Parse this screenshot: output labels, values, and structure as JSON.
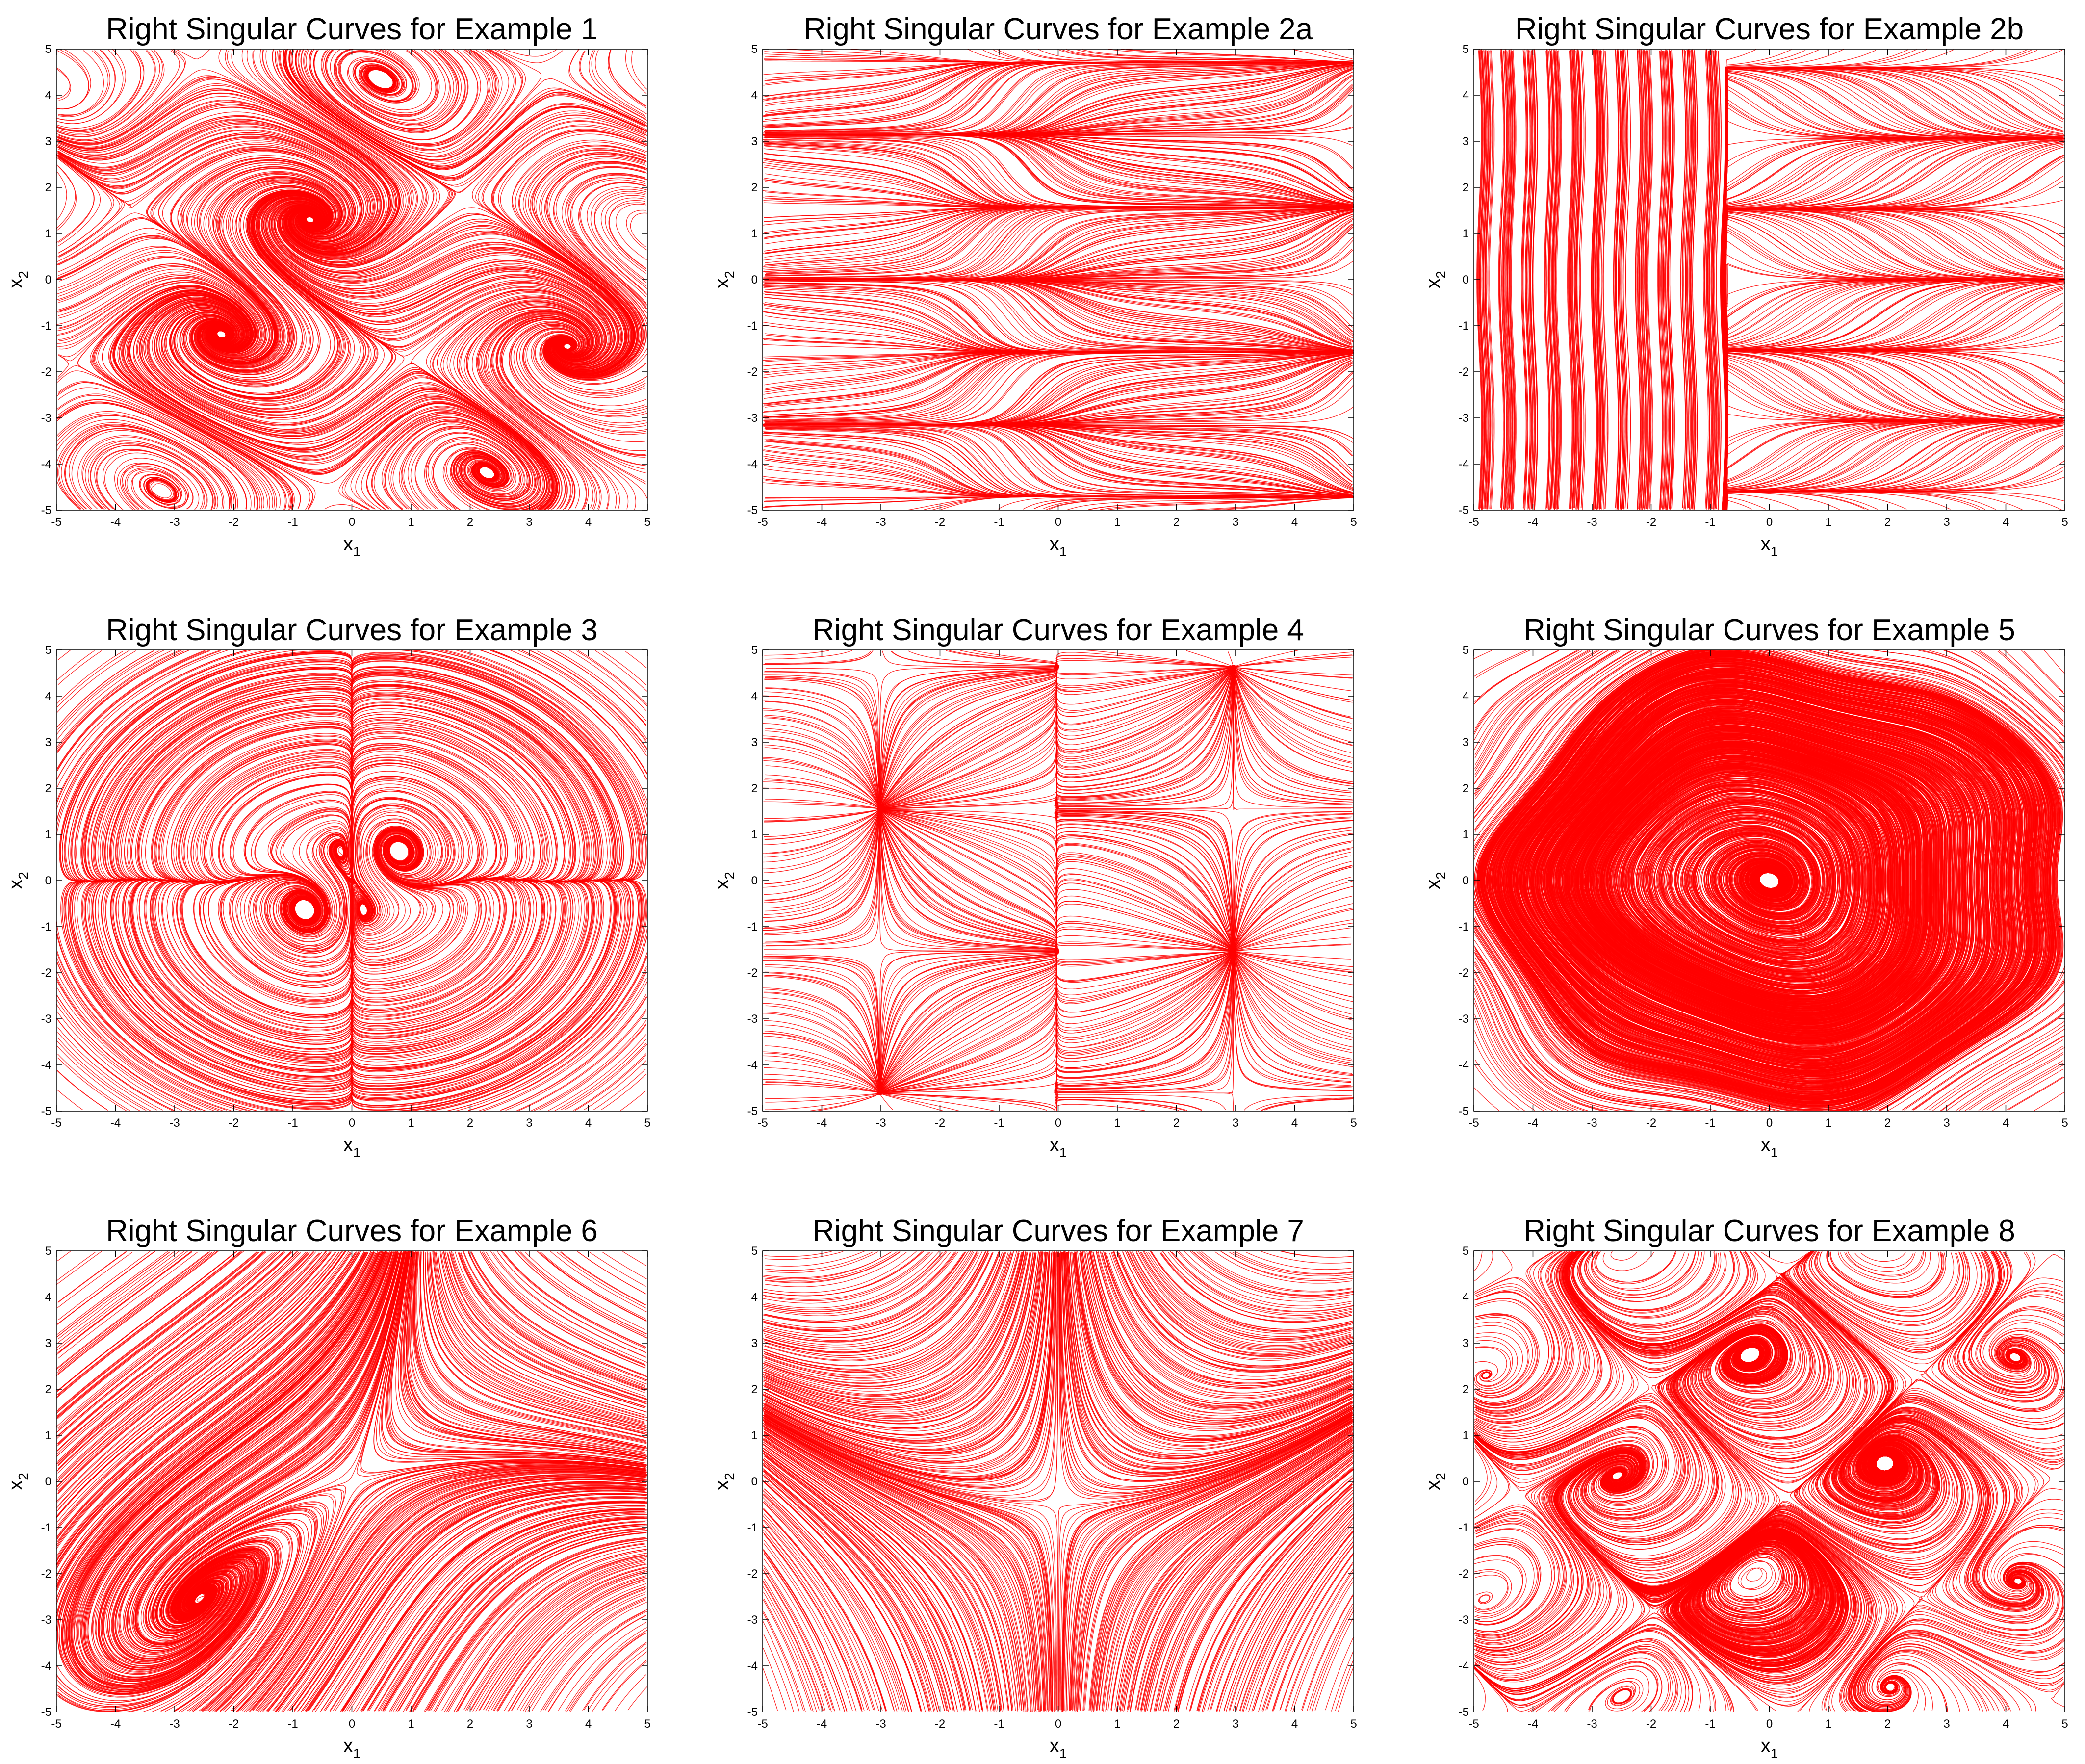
{
  "chart_data": [
    {
      "type": "line",
      "title": "Right Singular Curves for Example 1",
      "xlabel": "x",
      "xlabel_sub": "1",
      "ylabel": "x",
      "ylabel_sub": "2",
      "xlim": [
        -5,
        5
      ],
      "ylim": [
        -5,
        5
      ],
      "xticks": [
        -5,
        -4,
        -3,
        -2,
        -1,
        0,
        1,
        2,
        3,
        4,
        5
      ],
      "yticks": [
        -5,
        -4,
        -3,
        -2,
        -1,
        0,
        1,
        2,
        3,
        4,
        5
      ],
      "field": "ex1",
      "color": "#ff0000"
    },
    {
      "type": "line",
      "title": "Right Singular Curves for Example 2a",
      "xlabel": "x",
      "xlabel_sub": "1",
      "ylabel": "x",
      "ylabel_sub": "2",
      "xlim": [
        -5,
        5
      ],
      "ylim": [
        -5,
        5
      ],
      "xticks": [
        -5,
        -4,
        -3,
        -2,
        -1,
        0,
        1,
        2,
        3,
        4,
        5
      ],
      "yticks": [
        -5,
        -4,
        -3,
        -2,
        -1,
        0,
        1,
        2,
        3,
        4,
        5
      ],
      "field": "ex2a",
      "color": "#ff0000"
    },
    {
      "type": "line",
      "title": "Right Singular Curves for Example 2b",
      "xlabel": "x",
      "xlabel_sub": "1",
      "ylabel": "x",
      "ylabel_sub": "2",
      "xlim": [
        -5,
        5
      ],
      "ylim": [
        -5,
        5
      ],
      "xticks": [
        -5,
        -4,
        -3,
        -2,
        -1,
        0,
        1,
        2,
        3,
        4,
        5
      ],
      "yticks": [
        -5,
        -4,
        -3,
        -2,
        -1,
        0,
        1,
        2,
        3,
        4,
        5
      ],
      "field": "ex2b",
      "color": "#ff0000"
    },
    {
      "type": "line",
      "title": "Right Singular Curves for Example 3",
      "xlabel": "x",
      "xlabel_sub": "1",
      "ylabel": "x",
      "ylabel_sub": "2",
      "xlim": [
        -5,
        5
      ],
      "ylim": [
        -5,
        5
      ],
      "xticks": [
        -5,
        -4,
        -3,
        -2,
        -1,
        0,
        1,
        2,
        3,
        4,
        5
      ],
      "yticks": [
        -5,
        -4,
        -3,
        -2,
        -1,
        0,
        1,
        2,
        3,
        4,
        5
      ],
      "field": "ex3",
      "color": "#ff0000"
    },
    {
      "type": "line",
      "title": "Right Singular Curves for Example 4",
      "xlabel": "x",
      "xlabel_sub": "1",
      "ylabel": "x",
      "ylabel_sub": "2",
      "xlim": [
        -5,
        5
      ],
      "ylim": [
        -5,
        5
      ],
      "xticks": [
        -5,
        -4,
        -3,
        -2,
        -1,
        0,
        1,
        2,
        3,
        4,
        5
      ],
      "yticks": [
        -5,
        -4,
        -3,
        -2,
        -1,
        0,
        1,
        2,
        3,
        4,
        5
      ],
      "field": "ex4",
      "color": "#ff0000"
    },
    {
      "type": "line",
      "title": "Right Singular Curves for Example 5",
      "xlabel": "x",
      "xlabel_sub": "1",
      "ylabel": "x",
      "ylabel_sub": "2",
      "xlim": [
        -5,
        5
      ],
      "ylim": [
        -5,
        5
      ],
      "xticks": [
        -5,
        -4,
        -3,
        -2,
        -1,
        0,
        1,
        2,
        3,
        4,
        5
      ],
      "yticks": [
        -5,
        -4,
        -3,
        -2,
        -1,
        0,
        1,
        2,
        3,
        4,
        5
      ],
      "field": "ex5",
      "color": "#ff0000"
    },
    {
      "type": "line",
      "title": "Right Singular Curves for Example 6",
      "xlabel": "x",
      "xlabel_sub": "1",
      "ylabel": "x",
      "ylabel_sub": "2",
      "xlim": [
        -5,
        5
      ],
      "ylim": [
        -5,
        5
      ],
      "xticks": [
        -5,
        -4,
        -3,
        -2,
        -1,
        0,
        1,
        2,
        3,
        4,
        5
      ],
      "yticks": [
        -5,
        -4,
        -3,
        -2,
        -1,
        0,
        1,
        2,
        3,
        4,
        5
      ],
      "field": "ex6",
      "color": "#ff0000"
    },
    {
      "type": "line",
      "title": "Right Singular Curves for Example 7",
      "xlabel": "x",
      "xlabel_sub": "1",
      "ylabel": "x",
      "ylabel_sub": "2",
      "xlim": [
        -5,
        5
      ],
      "ylim": [
        -5,
        5
      ],
      "xticks": [
        -5,
        -4,
        -3,
        -2,
        -1,
        0,
        1,
        2,
        3,
        4,
        5
      ],
      "yticks": [
        -5,
        -4,
        -3,
        -2,
        -1,
        0,
        1,
        2,
        3,
        4,
        5
      ],
      "field": "ex7",
      "color": "#ff0000"
    },
    {
      "type": "line",
      "title": "Right Singular Curves for Example 8",
      "xlabel": "x",
      "xlabel_sub": "1",
      "ylabel": "x",
      "ylabel_sub": "2",
      "xlim": [
        -5,
        5
      ],
      "ylim": [
        -5,
        5
      ],
      "xticks": [
        -5,
        -4,
        -3,
        -2,
        -1,
        0,
        1,
        2,
        3,
        4,
        5
      ],
      "yticks": [
        -5,
        -4,
        -3,
        -2,
        -1,
        0,
        1,
        2,
        3,
        4,
        5
      ],
      "field": "ex8",
      "color": "#ff0000"
    }
  ]
}
